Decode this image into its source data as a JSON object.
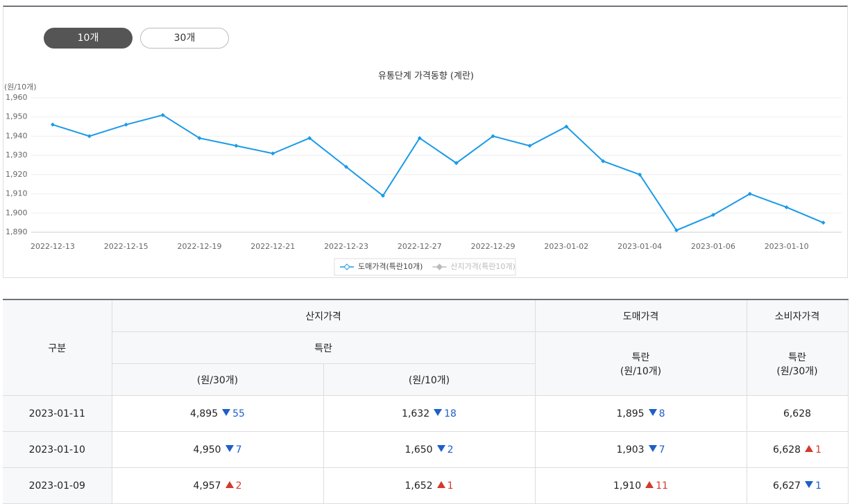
{
  "buttons": [
    {
      "label": "10개",
      "active": true
    },
    {
      "label": "30개",
      "active": false
    }
  ],
  "chart_data": {
    "type": "line",
    "title": "유통단계 가격동향 (계란)",
    "y_unit": "(원/10개)",
    "categories": [
      "2022-12-13",
      null,
      "2022-12-15",
      null,
      "2022-12-19",
      null,
      "2022-12-21",
      null,
      "2022-12-23",
      null,
      "2022-12-27",
      null,
      "2022-12-29",
      null,
      "2023-01-02",
      null,
      "2023-01-04",
      null,
      "2023-01-06",
      null,
      "2023-01-10",
      null
    ],
    "series": [
      {
        "name": "도매가격(특란10개)",
        "color": "#1a9ae8",
        "values": [
          1946,
          1940,
          1946,
          1951,
          1939,
          1935,
          1931,
          1939,
          1924,
          1909,
          1939,
          1926,
          1940,
          1935,
          1945,
          1927,
          1920,
          1891,
          1899,
          1910,
          1903,
          1895
        ]
      },
      {
        "name": "산지가격(특란10개)",
        "color": "#bbbbbb",
        "hidden": true
      }
    ],
    "ylim": [
      1890,
      1960
    ],
    "yticks": [
      {
        "value": 1890,
        "label": "1,890"
      },
      {
        "value": 1900,
        "label": "1,900"
      },
      {
        "value": 1910,
        "label": "1,910"
      },
      {
        "value": 1920,
        "label": "1,920"
      },
      {
        "value": 1930,
        "label": "1,930"
      },
      {
        "value": 1940,
        "label": "1,940"
      },
      {
        "value": 1950,
        "label": "1,950"
      },
      {
        "value": 1960,
        "label": "1,960"
      }
    ],
    "grid": true
  },
  "table": {
    "header": {
      "division": "구분",
      "farm": "산지가격",
      "farm_grade": "특란",
      "farm_unit_30": "(원/30개)",
      "farm_unit_10": "(원/10개)",
      "wholesale": "도매가격",
      "wholesale_sub": "특란\n(원/10개)",
      "consumer": "소비자가격",
      "consumer_sub": "특란\n(원/30개)"
    },
    "rows": [
      {
        "date": "2023-01-11",
        "cells": [
          {
            "value": "4,895",
            "change": "55",
            "direction": "down"
          },
          {
            "value": "1,632",
            "change": "18",
            "direction": "down"
          },
          {
            "value": "1,895",
            "change": "8",
            "direction": "down"
          },
          {
            "value": "6,628"
          }
        ]
      },
      {
        "date": "2023-01-10",
        "cells": [
          {
            "value": "4,950",
            "change": "7",
            "direction": "down"
          },
          {
            "value": "1,650",
            "change": "2",
            "direction": "down"
          },
          {
            "value": "1,903",
            "change": "7",
            "direction": "down"
          },
          {
            "value": "6,628",
            "change": "1",
            "direction": "up"
          }
        ]
      },
      {
        "date": "2023-01-09",
        "cells": [
          {
            "value": "4,957",
            "change": "2",
            "direction": "up"
          },
          {
            "value": "1,652",
            "change": "1",
            "direction": "up"
          },
          {
            "value": "1,910",
            "change": "11",
            "direction": "up"
          },
          {
            "value": "6,627",
            "change": "1",
            "direction": "down"
          }
        ]
      }
    ]
  }
}
